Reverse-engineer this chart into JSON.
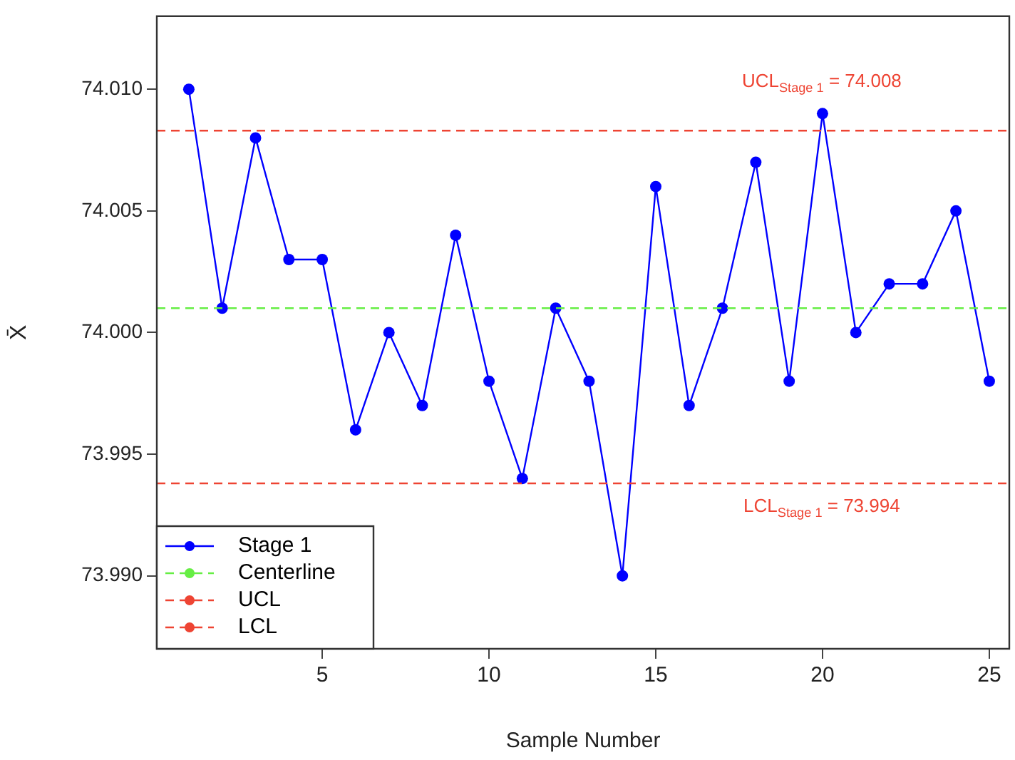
{
  "chart_data": {
    "type": "line",
    "xlabel": "Sample Number",
    "ylabel": "X̄",
    "x": [
      1,
      2,
      3,
      4,
      5,
      6,
      7,
      8,
      9,
      10,
      11,
      12,
      13,
      14,
      15,
      16,
      17,
      18,
      19,
      20,
      21,
      22,
      23,
      24,
      25
    ],
    "series": [
      {
        "name": "Stage 1",
        "color": "#0000ff",
        "values": [
          74.01,
          74.001,
          74.008,
          74.003,
          74.003,
          73.996,
          74.0,
          73.997,
          74.004,
          73.998,
          73.994,
          74.001,
          73.998,
          73.99,
          74.006,
          73.997,
          74.001,
          74.007,
          73.998,
          74.009,
          74.0,
          74.002,
          74.002,
          74.005,
          73.998
        ]
      }
    ],
    "ref_lines": [
      {
        "axis": "y",
        "value": 74.001,
        "label": "Centerline",
        "color": "#66ee44",
        "line_style": "dashed"
      },
      {
        "axis": "y",
        "value": 74.0083,
        "label": "UCL",
        "color": "#ee4433",
        "line_style": "dashed"
      },
      {
        "axis": "y",
        "value": 73.9938,
        "label": "LCL",
        "color": "#ee4433",
        "line_style": "dashed"
      }
    ],
    "annotations": [
      "UCL$_{Stage 1}$ = 74.008",
      "LCL$_{Stage 1}$ = 73.994"
    ],
    "xlim": [
      0.04,
      25.6
    ],
    "xticks": [
      5,
      10,
      15,
      20,
      25
    ],
    "ylim": [
      73.987,
      74.013
    ],
    "yticks": [
      {
        "value": 73.99,
        "label": "73.990"
      },
      {
        "value": 73.995,
        "label": "73.995"
      },
      {
        "value": 74.0,
        "label": "74.000"
      },
      {
        "value": 74.005,
        "label": "74.005"
      },
      {
        "value": 74.01,
        "label": "74.010"
      }
    ],
    "marker": "circle",
    "line_style": "solid",
    "grid": false,
    "legend": "bottom left"
  }
}
